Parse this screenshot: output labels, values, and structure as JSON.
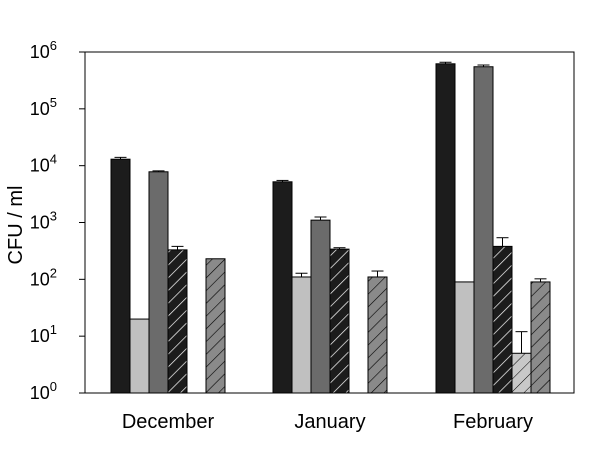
{
  "chart_data": {
    "type": "bar",
    "title": "",
    "xlabel": "",
    "ylabel": "CFU / ml",
    "yscale": "log",
    "ylim": [
      1,
      1000000
    ],
    "ytick_base": "10",
    "ytick_exponents": [
      "0",
      "1",
      "2",
      "3",
      "4",
      "5",
      "6"
    ],
    "categories": [
      "December",
      "January",
      "February"
    ],
    "grid": false,
    "legend": "none",
    "series": [
      {
        "fill": "#1c1c1c",
        "pattern": "solid",
        "values": [
          13000,
          5200,
          620000
        ],
        "err": [
          1000,
          300,
          40000
        ]
      },
      {
        "fill": "#c0c0c0",
        "pattern": "solid",
        "values": [
          20,
          110,
          90
        ],
        "err": [
          0,
          18,
          0
        ]
      },
      {
        "fill": "#6b6b6b",
        "pattern": "solid",
        "values": [
          7800,
          1100,
          550000
        ],
        "err": [
          300,
          150,
          40000
        ]
      },
      {
        "fill": "#1c1c1c",
        "pattern": "hatch",
        "values": [
          330,
          340,
          380
        ],
        "err": [
          50,
          20,
          160
        ]
      },
      {
        "fill": "#c8c8c8",
        "pattern": "hatch",
        "values": [
          null,
          null,
          5
        ],
        "err": [
          0,
          0,
          7
        ]
      },
      {
        "fill": "#8a8a8a",
        "pattern": "hatch",
        "values": [
          230,
          110,
          90
        ],
        "err": [
          0,
          30,
          12
        ]
      }
    ]
  }
}
